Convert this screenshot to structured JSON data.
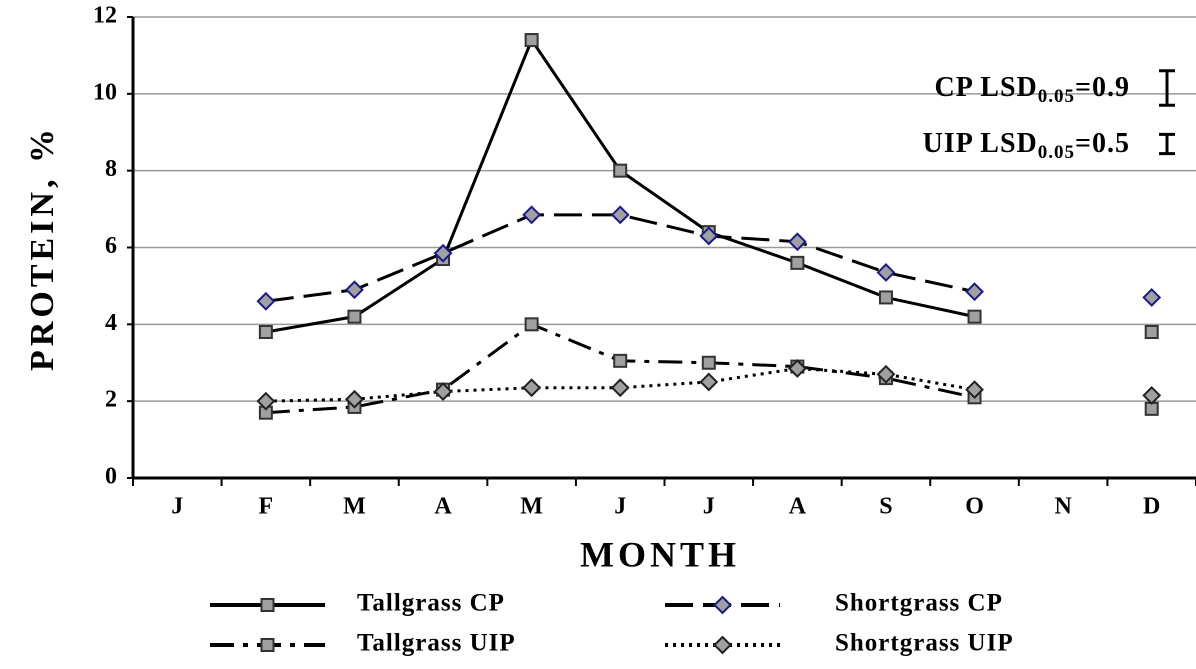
{
  "chart_data": {
    "type": "line",
    "xlabel": "MONTH",
    "ylabel": "PROTEIN, %",
    "categories": [
      "J",
      "F",
      "M",
      "A",
      "M",
      "J",
      "J",
      "A",
      "S",
      "O",
      "N",
      "D"
    ],
    "ylim": [
      0,
      12
    ],
    "yticks": [
      0,
      2,
      4,
      6,
      8,
      10,
      12
    ],
    "grid": true,
    "series": [
      {
        "name": "Tallgrass CP",
        "color": "#000000",
        "dash": "solid",
        "marker": "square",
        "marker_edge": "#333333",
        "values": [
          null,
          3.8,
          4.2,
          5.7,
          11.4,
          8.0,
          6.4,
          5.6,
          4.7,
          4.2,
          null,
          3.8
        ]
      },
      {
        "name": "Shortgrass CP",
        "color": "#000000",
        "dash": "dashed",
        "marker": "diamond",
        "marker_edge": "#1a1a8c",
        "values": [
          null,
          4.6,
          4.9,
          5.85,
          6.85,
          6.85,
          6.3,
          6.15,
          5.35,
          4.85,
          null,
          4.7
        ]
      },
      {
        "name": "Tallgrass UIP",
        "color": "#000000",
        "dash": "dashdot",
        "marker": "square",
        "marker_edge": "#333333",
        "values": [
          null,
          1.7,
          1.85,
          2.3,
          4.0,
          3.05,
          3.0,
          2.9,
          2.6,
          2.1,
          null,
          1.8
        ]
      },
      {
        "name": "Shortgrass UIP",
        "color": "#000000",
        "dash": "dotted",
        "marker": "diamond",
        "marker_edge": "#222222",
        "values": [
          null,
          2.0,
          2.05,
          2.25,
          2.35,
          2.35,
          2.5,
          2.85,
          2.7,
          2.3,
          null,
          2.15
        ]
      }
    ],
    "lsd": [
      {
        "label": "CP LSD",
        "subscript": "0.05",
        "value_label": "=0.9",
        "value": 0.9
      },
      {
        "label": "UIP LSD",
        "subscript": "0.05",
        "value_label": "=0.5",
        "value": 0.5
      }
    ]
  }
}
